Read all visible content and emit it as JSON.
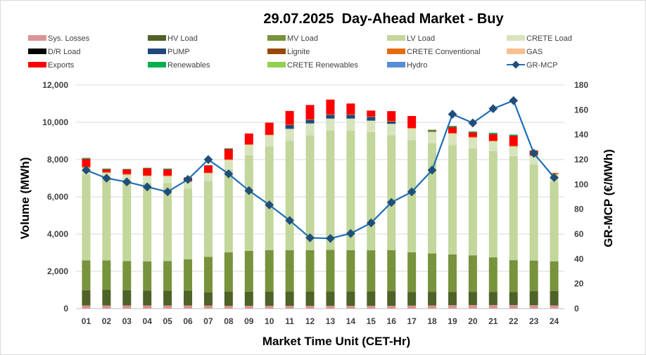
{
  "chart_data": {
    "type": "bar",
    "stacked": true,
    "title": "29.07.2025  Day-Ahead Market - Buy",
    "xlabel": "Market Time Unit (CET-Hr)",
    "ylabel": "Volume (MWh)",
    "y2label": "GR-MCP (€/MWh)",
    "ylim": [
      0,
      12000
    ],
    "y2lim": [
      0,
      180
    ],
    "yticks": [
      "0",
      "2,000",
      "4,000",
      "6,000",
      "8,000",
      "10,000",
      "12,000"
    ],
    "y2ticks": [
      "0",
      "20",
      "40",
      "60",
      "80",
      "100",
      "120",
      "140",
      "160",
      "180"
    ],
    "grid": true,
    "legend_position": "top",
    "categories": [
      "01",
      "02",
      "03",
      "04",
      "05",
      "06",
      "07",
      "08",
      "09",
      "10",
      "11",
      "12",
      "13",
      "14",
      "15",
      "16",
      "17",
      "18",
      "19",
      "20",
      "21",
      "22",
      "23",
      "24"
    ],
    "legend": [
      {
        "name": "Sys. Losses",
        "color": "#d99594",
        "kind": "bar"
      },
      {
        "name": "HV Load",
        "color": "#4f6228",
        "kind": "bar"
      },
      {
        "name": "MV Load",
        "color": "#77933c",
        "kind": "bar"
      },
      {
        "name": "LV Load",
        "color": "#c3d69b",
        "kind": "bar"
      },
      {
        "name": "CRETE Load",
        "color": "#d7e4bd",
        "kind": "bar"
      },
      {
        "name": "D/R Load",
        "color": "#000000",
        "kind": "bar"
      },
      {
        "name": "PUMP",
        "color": "#1f497d",
        "kind": "bar"
      },
      {
        "name": "Lignite",
        "color": "#984807",
        "kind": "bar"
      },
      {
        "name": "CRETE Conventional",
        "color": "#e46c0a",
        "kind": "bar"
      },
      {
        "name": "GAS",
        "color": "#fac090",
        "kind": "bar"
      },
      {
        "name": "Exports",
        "color": "#ff0000",
        "kind": "bar"
      },
      {
        "name": "Renewables",
        "color": "#00b050",
        "kind": "bar"
      },
      {
        "name": "CRETE Renewables",
        "color": "#92d050",
        "kind": "bar"
      },
      {
        "name": "Hydro",
        "color": "#558ed5",
        "kind": "bar"
      },
      {
        "name": "GR-MCP",
        "color": "#1f6fb4",
        "kind": "line"
      }
    ],
    "series": [
      {
        "name": "Sys. Losses",
        "color": "#d99594",
        "values": [
          170,
          170,
          170,
          170,
          170,
          170,
          160,
          150,
          150,
          150,
          150,
          150,
          150,
          150,
          150,
          150,
          160,
          170,
          180,
          190,
          190,
          190,
          180,
          170
        ]
      },
      {
        "name": "HV Load",
        "color": "#4f6228",
        "values": [
          820,
          830,
          810,
          800,
          790,
          790,
          720,
          770,
          760,
          770,
          770,
          770,
          770,
          770,
          780,
          790,
          730,
          730,
          720,
          710,
          700,
          700,
          760,
          780
        ]
      },
      {
        "name": "MV Load",
        "color": "#77933c",
        "values": [
          1600,
          1590,
          1570,
          1560,
          1590,
          1690,
          1900,
          2100,
          2190,
          2220,
          2220,
          2220,
          2230,
          2220,
          2200,
          2200,
          2130,
          2060,
          2010,
          1960,
          1860,
          1710,
          1640,
          1590
        ]
      },
      {
        "name": "LV Load",
        "color": "#c3d69b",
        "values": [
          4610,
          4330,
          4270,
          4220,
          4190,
          3790,
          4070,
          4450,
          5130,
          5560,
          5860,
          6160,
          6400,
          6410,
          6350,
          6160,
          6020,
          5910,
          5870,
          5730,
          5710,
          5570,
          5160,
          4280
        ]
      },
      {
        "name": "CRETE Load",
        "color": "#d7e4bd",
        "values": [
          360,
          370,
          370,
          370,
          370,
          370,
          420,
          510,
          560,
          610,
          650,
          640,
          650,
          650,
          610,
          620,
          630,
          610,
          610,
          590,
          520,
          530,
          450,
          390
        ]
      },
      {
        "name": "PUMP",
        "color": "#1f497d",
        "values": [
          0,
          0,
          0,
          0,
          0,
          0,
          0,
          0,
          0,
          0,
          200,
          200,
          200,
          200,
          200,
          120,
          0,
          0,
          0,
          0,
          0,
          0,
          0,
          0
        ]
      },
      {
        "name": "CRETE Conventional",
        "color": "#e46c0a",
        "values": [
          50,
          40,
          40,
          30,
          30,
          30,
          30,
          30,
          30,
          30,
          30,
          30,
          30,
          30,
          30,
          30,
          30,
          30,
          40,
          40,
          40,
          40,
          60,
          80
        ]
      },
      {
        "name": "Exports",
        "color": "#ff0000",
        "values": [
          430,
          150,
          240,
          380,
          340,
          190,
          380,
          560,
          580,
          640,
          730,
          760,
          790,
          580,
          310,
          530,
          640,
          30,
          320,
          240,
          350,
          540,
          220,
          0
        ]
      },
      {
        "name": "Renewables",
        "color": "#00b050",
        "values": [
          50,
          40,
          30,
          30,
          40,
          20,
          20,
          40,
          0,
          0,
          0,
          0,
          0,
          0,
          0,
          0,
          0,
          60,
          60,
          50,
          70,
          60,
          30,
          0
        ]
      }
    ],
    "line": {
      "name": "GR-MCP",
      "axis": "right",
      "color": "#1f6fb4",
      "values": [
        111.5,
        105,
        102,
        98,
        94,
        104,
        120,
        108.5,
        95,
        83.5,
        71,
        57,
        56.5,
        60.5,
        69,
        85.5,
        94,
        111.5,
        156.5,
        149.5,
        161,
        167.5,
        125,
        105.5
      ]
    }
  }
}
